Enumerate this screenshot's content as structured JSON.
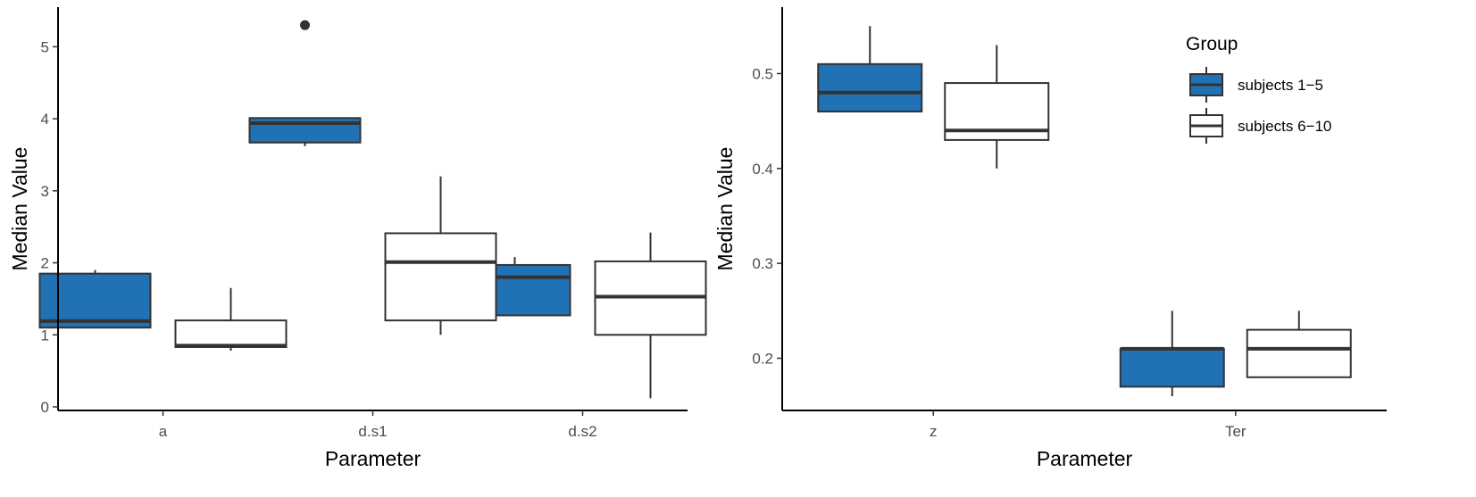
{
  "colors": {
    "group1_fill": "#2171b5",
    "group2_fill": "#ffffff",
    "stroke": "#333333",
    "axis": "#000000",
    "tick_text": "#4d4d4d"
  },
  "legend": {
    "title": "Group",
    "placement": "top-right",
    "items": [
      {
        "label": "subjects 1−5",
        "fill": "#2171b5"
      },
      {
        "label": "subjects 6−10",
        "fill": "#ffffff"
      }
    ]
  },
  "chart_data": [
    {
      "type": "boxplot",
      "xlabel": "Parameter",
      "ylabel": "Median Value",
      "ylim": [
        -0.05,
        5.55
      ],
      "yticks": [
        0,
        1,
        2,
        3,
        4,
        5
      ],
      "categories": [
        "a",
        "d.s1",
        "d.s2"
      ],
      "grid": false,
      "series": [
        {
          "name": "subjects 1−5",
          "boxes": [
            {
              "category": "a",
              "whisker_low": 1.1,
              "q1": 1.1,
              "median": 1.19,
              "q3": 1.85,
              "whisker_high": 1.9,
              "outliers": []
            },
            {
              "category": "d.s1",
              "whisker_low": 3.62,
              "q1": 3.67,
              "median": 3.94,
              "q3": 4.01,
              "whisker_high": 4.01,
              "outliers": [
                5.3
              ]
            },
            {
              "category": "d.s2",
              "whisker_low": 1.27,
              "q1": 1.27,
              "median": 1.8,
              "q3": 1.97,
              "whisker_high": 2.08,
              "outliers": []
            }
          ]
        },
        {
          "name": "subjects 6−10",
          "boxes": [
            {
              "category": "a",
              "whisker_low": 0.78,
              "q1": 0.83,
              "median": 0.85,
              "q3": 1.2,
              "whisker_high": 1.65,
              "outliers": []
            },
            {
              "category": "d.s1",
              "whisker_low": 1.0,
              "q1": 1.2,
              "median": 2.01,
              "q3": 2.41,
              "whisker_high": 3.2,
              "outliers": []
            },
            {
              "category": "d.s2",
              "whisker_low": 0.12,
              "q1": 1.0,
              "median": 1.53,
              "q3": 2.02,
              "whisker_high": 2.42,
              "outliers": []
            }
          ]
        }
      ]
    },
    {
      "type": "boxplot",
      "xlabel": "Parameter",
      "ylabel": "Median Value",
      "ylim": [
        0.145,
        0.57
      ],
      "yticks": [
        0.2,
        0.3,
        0.4,
        0.5
      ],
      "categories": [
        "z",
        "Ter"
      ],
      "grid": false,
      "series": [
        {
          "name": "subjects 1−5",
          "boxes": [
            {
              "category": "z",
              "whisker_low": 0.46,
              "q1": 0.46,
              "median": 0.48,
              "q3": 0.51,
              "whisker_high": 0.55,
              "outliers": []
            },
            {
              "category": "Ter",
              "whisker_low": 0.16,
              "q1": 0.17,
              "median": 0.21,
              "q3": 0.21,
              "whisker_high": 0.25,
              "outliers": []
            }
          ]
        },
        {
          "name": "subjects 6−10",
          "boxes": [
            {
              "category": "z",
              "whisker_low": 0.4,
              "q1": 0.43,
              "median": 0.44,
              "q3": 0.49,
              "whisker_high": 0.53,
              "outliers": []
            },
            {
              "category": "Ter",
              "whisker_low": 0.18,
              "q1": 0.18,
              "median": 0.21,
              "q3": 0.23,
              "whisker_high": 0.25,
              "outliers": []
            }
          ]
        }
      ]
    }
  ]
}
